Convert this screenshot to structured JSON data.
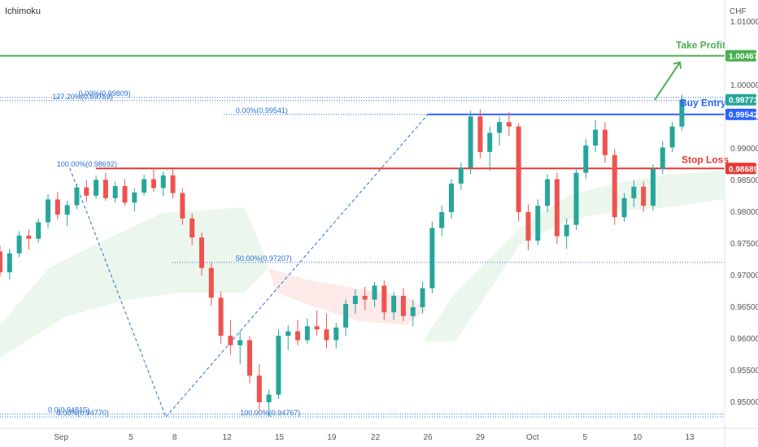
{
  "indicator_label": "Ichimoku",
  "currency_label": "CHF",
  "chart_data": {
    "type": "candlestick",
    "y_axis": {
      "min": 0.9475,
      "max": 1.0115,
      "ticks": [
        "1.01000",
        "1.00000",
        "0.99500",
        "0.99000",
        "0.98500",
        "0.98000",
        "0.97500",
        "0.97000",
        "0.96500",
        "0.96000",
        "0.95500",
        "0.95000"
      ]
    },
    "x_axis": {
      "labels": [
        "Sep",
        "5",
        "8",
        "12",
        "15",
        "19",
        "22",
        "26",
        "29",
        "Oct",
        "5",
        "10",
        "13"
      ],
      "label_days": [
        0,
        8,
        13,
        19,
        25,
        31,
        36,
        42,
        48,
        54,
        60,
        66,
        72
      ],
      "day_range": [
        -7,
        76
      ]
    },
    "levels": [
      {
        "name": "Take Profit",
        "value": 1.00467,
        "label": "1.00467",
        "color": "#4caf50"
      },
      {
        "name": "Buy Entry",
        "value": 0.99542,
        "label": "0.99542",
        "color": "#2962ff"
      },
      {
        "name": "Stop Loss",
        "value": 0.98689,
        "label": "0.98689",
        "color": "#e53935"
      },
      {
        "name": "",
        "value": 0.99773,
        "label": "0.99773",
        "color": "#26a69a"
      }
    ],
    "fib_labels": [
      {
        "text": "127.20%(0.99759)",
        "day": -1,
        "value": 0.99759
      },
      {
        "text": "0.00%(0.99809)",
        "day": 2,
        "value": 0.99809
      },
      {
        "text": "0.00%(0.99541)",
        "day": 20,
        "value": 0.99541
      },
      {
        "text": "100.00%(0.98692)",
        "day": -0.5,
        "value": 0.98692
      },
      {
        "text": "50.00%(0.97207)",
        "day": 20,
        "value": 0.97207
      },
      {
        "text": "100.00%(0.94767)",
        "day": 20.5,
        "value": 0.94767
      },
      {
        "text": "0.0(0.94815)",
        "day": -1.5,
        "value": 0.94815
      },
      {
        "text": "0.00%(0.94770)",
        "day": -0.5,
        "value": 0.9477
      }
    ],
    "annotations": [
      "Take Profit",
      "Buy Entry",
      "Stop Loss"
    ],
    "candles": [
      {
        "o": 0.9738,
        "h": 0.9747,
        "l": 0.9698,
        "c": 0.9705
      },
      {
        "o": 0.9705,
        "h": 0.9742,
        "l": 0.9694,
        "c": 0.9735
      },
      {
        "o": 0.9735,
        "h": 0.977,
        "l": 0.9729,
        "c": 0.9763
      },
      {
        "o": 0.9763,
        "h": 0.9773,
        "l": 0.9741,
        "c": 0.9758
      },
      {
        "o": 0.9758,
        "h": 0.979,
        "l": 0.9752,
        "c": 0.9784
      },
      {
        "o": 0.9784,
        "h": 0.9828,
        "l": 0.9775,
        "c": 0.982
      },
      {
        "o": 0.982,
        "h": 0.9832,
        "l": 0.9788,
        "c": 0.9796
      },
      {
        "o": 0.9796,
        "h": 0.9818,
        "l": 0.9778,
        "c": 0.9811
      },
      {
        "o": 0.9811,
        "h": 0.9845,
        "l": 0.9805,
        "c": 0.9839
      },
      {
        "o": 0.9839,
        "h": 0.9851,
        "l": 0.9816,
        "c": 0.9826
      },
      {
        "o": 0.9826,
        "h": 0.9858,
        "l": 0.9821,
        "c": 0.9851
      },
      {
        "o": 0.9851,
        "h": 0.9862,
        "l": 0.9818,
        "c": 0.9822
      },
      {
        "o": 0.9822,
        "h": 0.9848,
        "l": 0.9815,
        "c": 0.9841
      },
      {
        "o": 0.9841,
        "h": 0.9852,
        "l": 0.981,
        "c": 0.9815
      },
      {
        "o": 0.9815,
        "h": 0.9838,
        "l": 0.9801,
        "c": 0.9831
      },
      {
        "o": 0.9831,
        "h": 0.9859,
        "l": 0.9826,
        "c": 0.9852
      },
      {
        "o": 0.9852,
        "h": 0.9869,
        "l": 0.9832,
        "c": 0.9838
      },
      {
        "o": 0.9838,
        "h": 0.9864,
        "l": 0.9825,
        "c": 0.9858
      },
      {
        "o": 0.9858,
        "h": 0.9868,
        "l": 0.9821,
        "c": 0.983
      },
      {
        "o": 0.983,
        "h": 0.9838,
        "l": 0.978,
        "c": 0.979
      },
      {
        "o": 0.979,
        "h": 0.9798,
        "l": 0.9748,
        "c": 0.976
      },
      {
        "o": 0.976,
        "h": 0.9768,
        "l": 0.97,
        "c": 0.9712
      },
      {
        "o": 0.9712,
        "h": 0.972,
        "l": 0.9652,
        "c": 0.9665
      },
      {
        "o": 0.9665,
        "h": 0.9675,
        "l": 0.9592,
        "c": 0.9605
      },
      {
        "o": 0.9605,
        "h": 0.963,
        "l": 0.9575,
        "c": 0.959
      },
      {
        "o": 0.959,
        "h": 0.9612,
        "l": 0.956,
        "c": 0.9598
      },
      {
        "o": 0.9598,
        "h": 0.9605,
        "l": 0.953,
        "c": 0.9542
      },
      {
        "o": 0.9542,
        "h": 0.956,
        "l": 0.9485,
        "c": 0.95
      },
      {
        "o": 0.95,
        "h": 0.952,
        "l": 0.9477,
        "c": 0.9512
      },
      {
        "o": 0.9512,
        "h": 0.9615,
        "l": 0.9505,
        "c": 0.9605
      },
      {
        "o": 0.9605,
        "h": 0.9622,
        "l": 0.9582,
        "c": 0.9612
      },
      {
        "o": 0.9612,
        "h": 0.963,
        "l": 0.959,
        "c": 0.9598
      },
      {
        "o": 0.9598,
        "h": 0.9632,
        "l": 0.9592,
        "c": 0.962
      },
      {
        "o": 0.962,
        "h": 0.9645,
        "l": 0.9605,
        "c": 0.9615
      },
      {
        "o": 0.9615,
        "h": 0.964,
        "l": 0.9585,
        "c": 0.9598
      },
      {
        "o": 0.9598,
        "h": 0.9625,
        "l": 0.9585,
        "c": 0.9618
      },
      {
        "o": 0.9618,
        "h": 0.9662,
        "l": 0.9605,
        "c": 0.9655
      },
      {
        "o": 0.9655,
        "h": 0.9678,
        "l": 0.964,
        "c": 0.9668
      },
      {
        "o": 0.9668,
        "h": 0.9682,
        "l": 0.9645,
        "c": 0.9662
      },
      {
        "o": 0.9662,
        "h": 0.969,
        "l": 0.965,
        "c": 0.9684
      },
      {
        "o": 0.9684,
        "h": 0.9692,
        "l": 0.963,
        "c": 0.9642
      },
      {
        "o": 0.9642,
        "h": 0.9674,
        "l": 0.963,
        "c": 0.9668
      },
      {
        "o": 0.9668,
        "h": 0.968,
        "l": 0.9628,
        "c": 0.9636
      },
      {
        "o": 0.9636,
        "h": 0.9662,
        "l": 0.962,
        "c": 0.965
      },
      {
        "o": 0.965,
        "h": 0.969,
        "l": 0.964,
        "c": 0.968
      },
      {
        "o": 0.968,
        "h": 0.9785,
        "l": 0.9672,
        "c": 0.9775
      },
      {
        "o": 0.9775,
        "h": 0.981,
        "l": 0.9762,
        "c": 0.98
      },
      {
        "o": 0.98,
        "h": 0.9852,
        "l": 0.979,
        "c": 0.9845
      },
      {
        "o": 0.9845,
        "h": 0.9878,
        "l": 0.9835,
        "c": 0.987
      },
      {
        "o": 0.987,
        "h": 0.996,
        "l": 0.986,
        "c": 0.9951
      },
      {
        "o": 0.9951,
        "h": 0.9962,
        "l": 0.9885,
        "c": 0.9895
      },
      {
        "o": 0.9895,
        "h": 0.9935,
        "l": 0.9865,
        "c": 0.9925
      },
      {
        "o": 0.9925,
        "h": 0.995,
        "l": 0.9905,
        "c": 0.9942
      },
      {
        "o": 0.9942,
        "h": 0.9958,
        "l": 0.992,
        "c": 0.9935
      },
      {
        "o": 0.9935,
        "h": 0.994,
        "l": 0.9785,
        "c": 0.98
      },
      {
        "o": 0.98,
        "h": 0.9812,
        "l": 0.974,
        "c": 0.9755
      },
      {
        "o": 0.9755,
        "h": 0.982,
        "l": 0.9748,
        "c": 0.981
      },
      {
        "o": 0.981,
        "h": 0.986,
        "l": 0.98,
        "c": 0.9852
      },
      {
        "o": 0.9852,
        "h": 0.9862,
        "l": 0.975,
        "c": 0.9762
      },
      {
        "o": 0.9762,
        "h": 0.979,
        "l": 0.9742,
        "c": 0.978
      },
      {
        "o": 0.978,
        "h": 0.987,
        "l": 0.9772,
        "c": 0.9862
      },
      {
        "o": 0.9862,
        "h": 0.9915,
        "l": 0.9852,
        "c": 0.9905
      },
      {
        "o": 0.9905,
        "h": 0.9945,
        "l": 0.9895,
        "c": 0.993
      },
      {
        "o": 0.993,
        "h": 0.9942,
        "l": 0.9878,
        "c": 0.989
      },
      {
        "o": 0.989,
        "h": 0.99,
        "l": 0.978,
        "c": 0.9792
      },
      {
        "o": 0.9792,
        "h": 0.983,
        "l": 0.9785,
        "c": 0.9822
      },
      {
        "o": 0.9822,
        "h": 0.985,
        "l": 0.9808,
        "c": 0.984
      },
      {
        "o": 0.984,
        "h": 0.9848,
        "l": 0.98,
        "c": 0.981
      },
      {
        "o": 0.981,
        "h": 0.9875,
        "l": 0.9802,
        "c": 0.9868
      },
      {
        "o": 0.9868,
        "h": 0.9912,
        "l": 0.986,
        "c": 0.9902
      },
      {
        "o": 0.9902,
        "h": 0.9942,
        "l": 0.9895,
        "c": 0.9935
      },
      {
        "o": 0.9935,
        "h": 0.9985,
        "l": 0.9928,
        "c": 0.9977
      }
    ],
    "x_start_day": -7,
    "x_step_days": 1.1
  }
}
